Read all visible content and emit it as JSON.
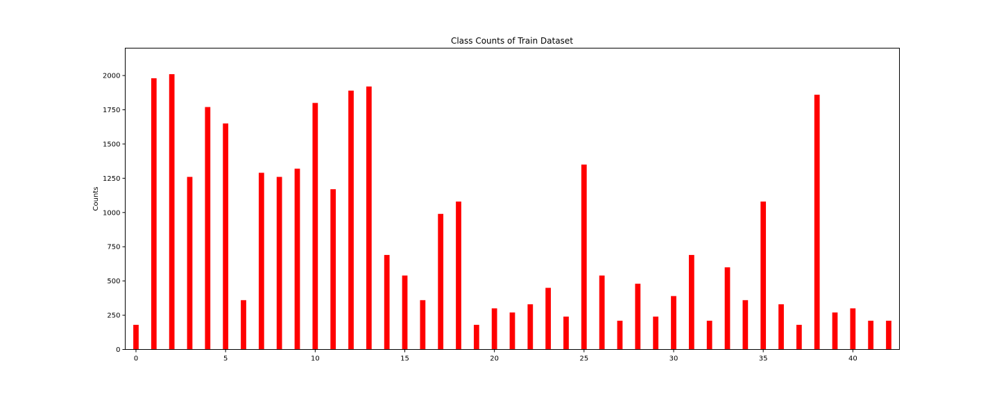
{
  "chart_data": {
    "type": "bar",
    "title": "Class Counts of Train Dataset",
    "xlabel": "",
    "ylabel": "Counts",
    "bar_color": "#ff0000",
    "xlim": [
      -0.6,
      42.6
    ],
    "ylim": [
      0,
      2200
    ],
    "x_ticks": [
      0,
      5,
      10,
      15,
      20,
      25,
      30,
      35,
      40
    ],
    "y_ticks": [
      0,
      250,
      500,
      750,
      1000,
      1250,
      1500,
      1750,
      2000
    ],
    "grid": false,
    "legend": "none",
    "x": [
      0,
      1,
      2,
      3,
      4,
      5,
      6,
      7,
      8,
      9,
      10,
      11,
      12,
      13,
      14,
      15,
      16,
      17,
      18,
      19,
      20,
      21,
      22,
      23,
      24,
      25,
      26,
      27,
      28,
      29,
      30,
      31,
      32,
      33,
      34,
      35,
      36,
      37,
      38,
      39,
      40,
      41,
      42
    ],
    "values": [
      180,
      1980,
      2010,
      1260,
      1770,
      1650,
      360,
      1290,
      1260,
      1320,
      1800,
      1170,
      1890,
      1920,
      690,
      540,
      360,
      990,
      1080,
      180,
      300,
      270,
      330,
      450,
      240,
      1350,
      540,
      210,
      480,
      240,
      390,
      690,
      210,
      600,
      360,
      1080,
      330,
      180,
      1860,
      270,
      300,
      210,
      210
    ]
  }
}
